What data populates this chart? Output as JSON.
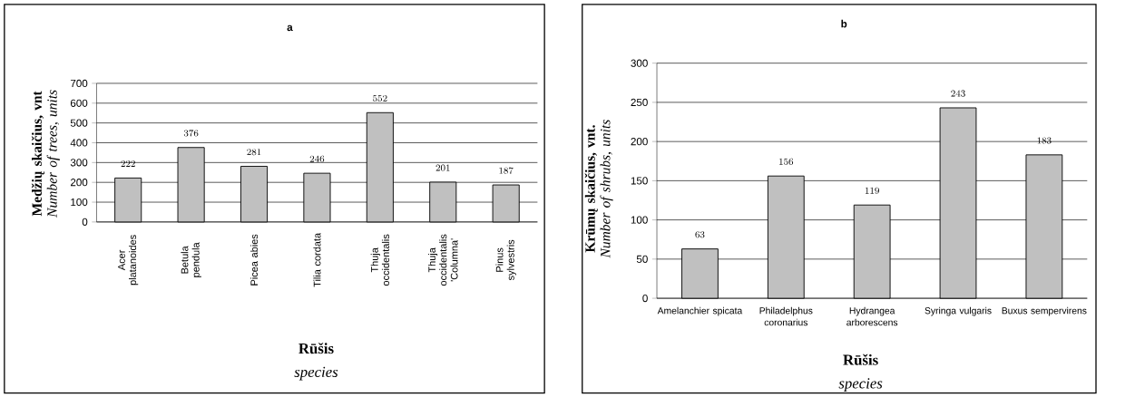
{
  "chart_data": [
    {
      "type": "bar",
      "title": "a",
      "xlabel": "**Rūšis** *species*",
      "ylabel": "**Medžių skaičius, vnt** *Number of trees, units*",
      "categories": [
        "Acer platanoides",
        "Betula pendula",
        "Picea abies",
        "Tilia cordata",
        "Thuja occidentalis",
        "Thuja occidentalis 'Columna'",
        "Pinus sylvestris"
      ],
      "values": [
        222,
        376,
        281,
        246,
        552,
        201,
        187
      ],
      "color": "#c0c0c0",
      "ylim": [
        0,
        700
      ],
      "yticks": [
        0,
        100,
        200,
        300,
        400,
        500,
        600,
        700
      ],
      "grid": "y",
      "data_labels": true
    },
    {
      "type": "bar",
      "title": "b",
      "xlabel": "**Rūšis** *species*",
      "ylabel": "**Krūmų skaičius, vnt.** *Number of shrubs, units*",
      "categories": [
        "Amelanchier spicata",
        "Philadelphus coronarius",
        "Hydrangea arborescens",
        "Syringa vulgaris",
        "Buxus sempervirens"
      ],
      "values": [
        63,
        156,
        119,
        243,
        183
      ],
      "color": "#c0c0c0",
      "ylim": [
        0,
        300
      ],
      "yticks": [
        0,
        50,
        100,
        150,
        200,
        250,
        300
      ],
      "grid": "y",
      "data_labels": true
    }
  ]
}
